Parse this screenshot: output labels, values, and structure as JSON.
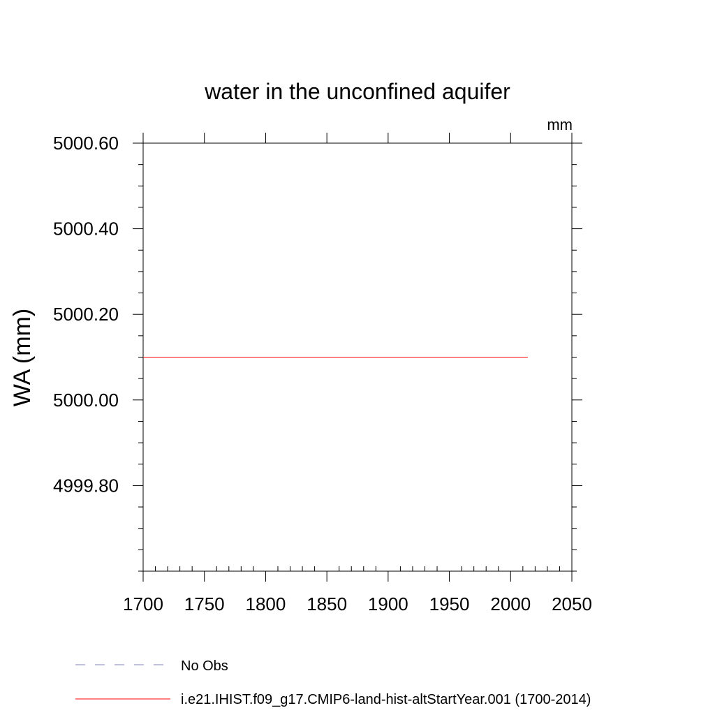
{
  "chart_data": {
    "type": "line",
    "title": "water in the unconfined aquifer",
    "units_label": "mm",
    "ylabel": "WA  (mm)",
    "xlabel": "",
    "xlim": [
      1700,
      2050
    ],
    "ylim": [
      4999.6,
      5000.6
    ],
    "x_ticks": [
      1700,
      1750,
      1800,
      1850,
      1900,
      1950,
      2000,
      2050
    ],
    "x_tick_labels": [
      "1700",
      "1750",
      "1800",
      "1850",
      "1900",
      "1950",
      "2000",
      "2050"
    ],
    "y_ticks": [
      4999.8,
      5000.0,
      5000.2,
      5000.4,
      5000.6
    ],
    "y_tick_labels": [
      "4999.80",
      "5000.00",
      "5000.20",
      "5000.40",
      "5000.60"
    ],
    "y_minor_step": 0.05,
    "x_minor_step": 10,
    "grid": false,
    "legend_position": "bottom-left",
    "series": [
      {
        "name": "No Obs",
        "color": "#8080c0",
        "style": "dashed",
        "x": [],
        "y": []
      },
      {
        "name": "i.e21.IHIST.f09_g17.CMIP6-land-hist-altStartYear.001 (1700-2014)",
        "color": "#ff0000",
        "style": "solid",
        "x": [
          1700,
          1750,
          1800,
          1850,
          1900,
          1950,
          2000,
          2014
        ],
        "y": [
          5000.1,
          5000.1,
          5000.1,
          5000.1,
          5000.1,
          5000.1,
          5000.1,
          5000.1
        ]
      }
    ]
  }
}
